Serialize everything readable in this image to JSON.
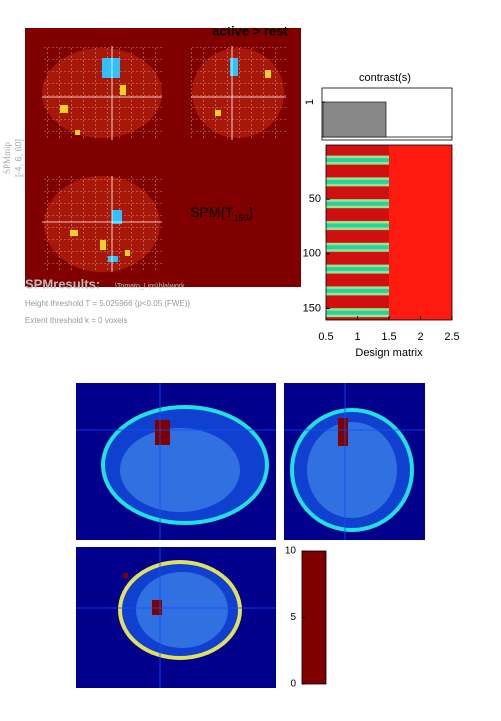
{
  "header": {
    "contrast_name": "active > rest",
    "mip_label": "SPMmip",
    "mip_coords": "[-4, 6, 60]",
    "stat_prefix": "SPM{T",
    "stat_df": "159",
    "stat_suffix": "}"
  },
  "results": {
    "title": "SPMresults:",
    "path": "\\Tomato_Lips\\bla\\work",
    "height_threshold": "Height threshold T = 5.025966  {p<0.05 (FWE)}",
    "extent_threshold": "Extent threshold k = 0 voxels"
  },
  "contrast": {
    "title": "contrast(s)",
    "values": [
      1,
      0
    ],
    "ylim": [
      0,
      1.4
    ],
    "yticks": [
      1
    ]
  },
  "design_matrix": {
    "xlabel": "Design matrix",
    "xlim": [
      0.5,
      2.5
    ],
    "xticks": [
      0.5,
      1,
      1.5,
      2,
      2.5
    ],
    "ylim": [
      0.5,
      160.5
    ],
    "yticks": [
      50,
      100,
      150
    ]
  },
  "colorbar": {
    "ylim": [
      0,
      10
    ],
    "yticks": [
      0,
      5,
      10
    ]
  }
}
